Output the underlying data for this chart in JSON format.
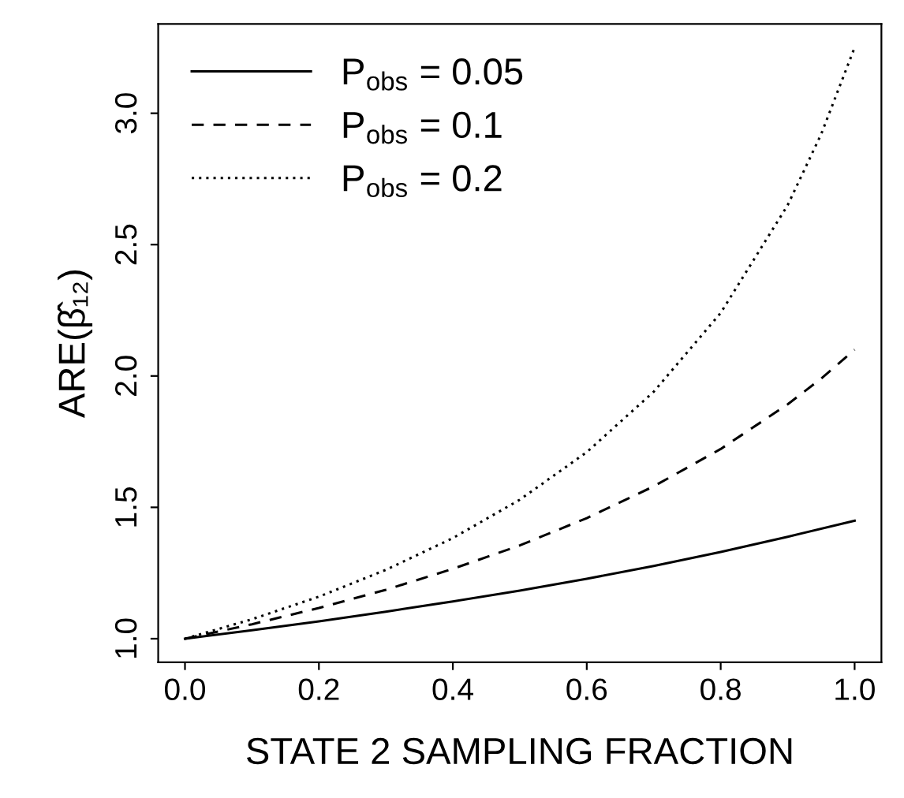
{
  "chart_data": {
    "type": "line",
    "xlabel": "STATE 2 SAMPLING FRACTION",
    "ylabel": "ARE(β̂₁₂)",
    "xlim": [
      -0.04,
      1.04
    ],
    "xticks": [
      {
        "value": 0.0,
        "label": "0.0"
      },
      0.2,
      0.4,
      0.6,
      0.8,
      {
        "value": 1.0,
        "label": "1.0"
      }
    ],
    "ylim": [
      0.91,
      3.34
    ],
    "yticks": [
      {
        "value": 1.0,
        "label": "1.0"
      },
      1.5,
      {
        "value": 2.0,
        "label": "2.0"
      },
      2.5,
      {
        "value": 3.0,
        "label": "3.0"
      }
    ],
    "grid": false,
    "legend": "top left",
    "marker": "none",
    "series": [
      {
        "name": "P$_{obs}$ = 0.05",
        "color": "#000000",
        "line_style": "solid",
        "x": [
          0,
          0.1,
          0.2,
          0.3,
          0.4,
          0.5,
          0.6,
          0.7,
          0.8,
          0.9,
          1.0
        ],
        "values": [
          1.0,
          1.032,
          1.066,
          1.103,
          1.142,
          1.183,
          1.228,
          1.277,
          1.33,
          1.388,
          1.449
        ]
      },
      {
        "name": "P$_{obs}$ = 0.1",
        "color": "#000000",
        "line_style": "dashed",
        "x": [
          0,
          0.1,
          0.2,
          0.3,
          0.4,
          0.5,
          0.6,
          0.7,
          0.8,
          0.9,
          0.95,
          1.0
        ],
        "values": [
          1.0,
          1.055,
          1.117,
          1.186,
          1.266,
          1.355,
          1.459,
          1.58,
          1.722,
          1.892,
          1.99,
          2.1
        ]
      },
      {
        "name": "P$_{obs}$ = 0.2",
        "color": "#000000",
        "line_style": "dotted",
        "x": [
          0,
          0.1,
          0.2,
          0.3,
          0.4,
          0.5,
          0.6,
          0.7,
          0.8,
          0.9,
          0.95,
          1.0
        ],
        "values": [
          1.0,
          1.074,
          1.16,
          1.262,
          1.383,
          1.529,
          1.71,
          1.94,
          2.24,
          2.65,
          2.92,
          3.25
        ]
      }
    ]
  }
}
